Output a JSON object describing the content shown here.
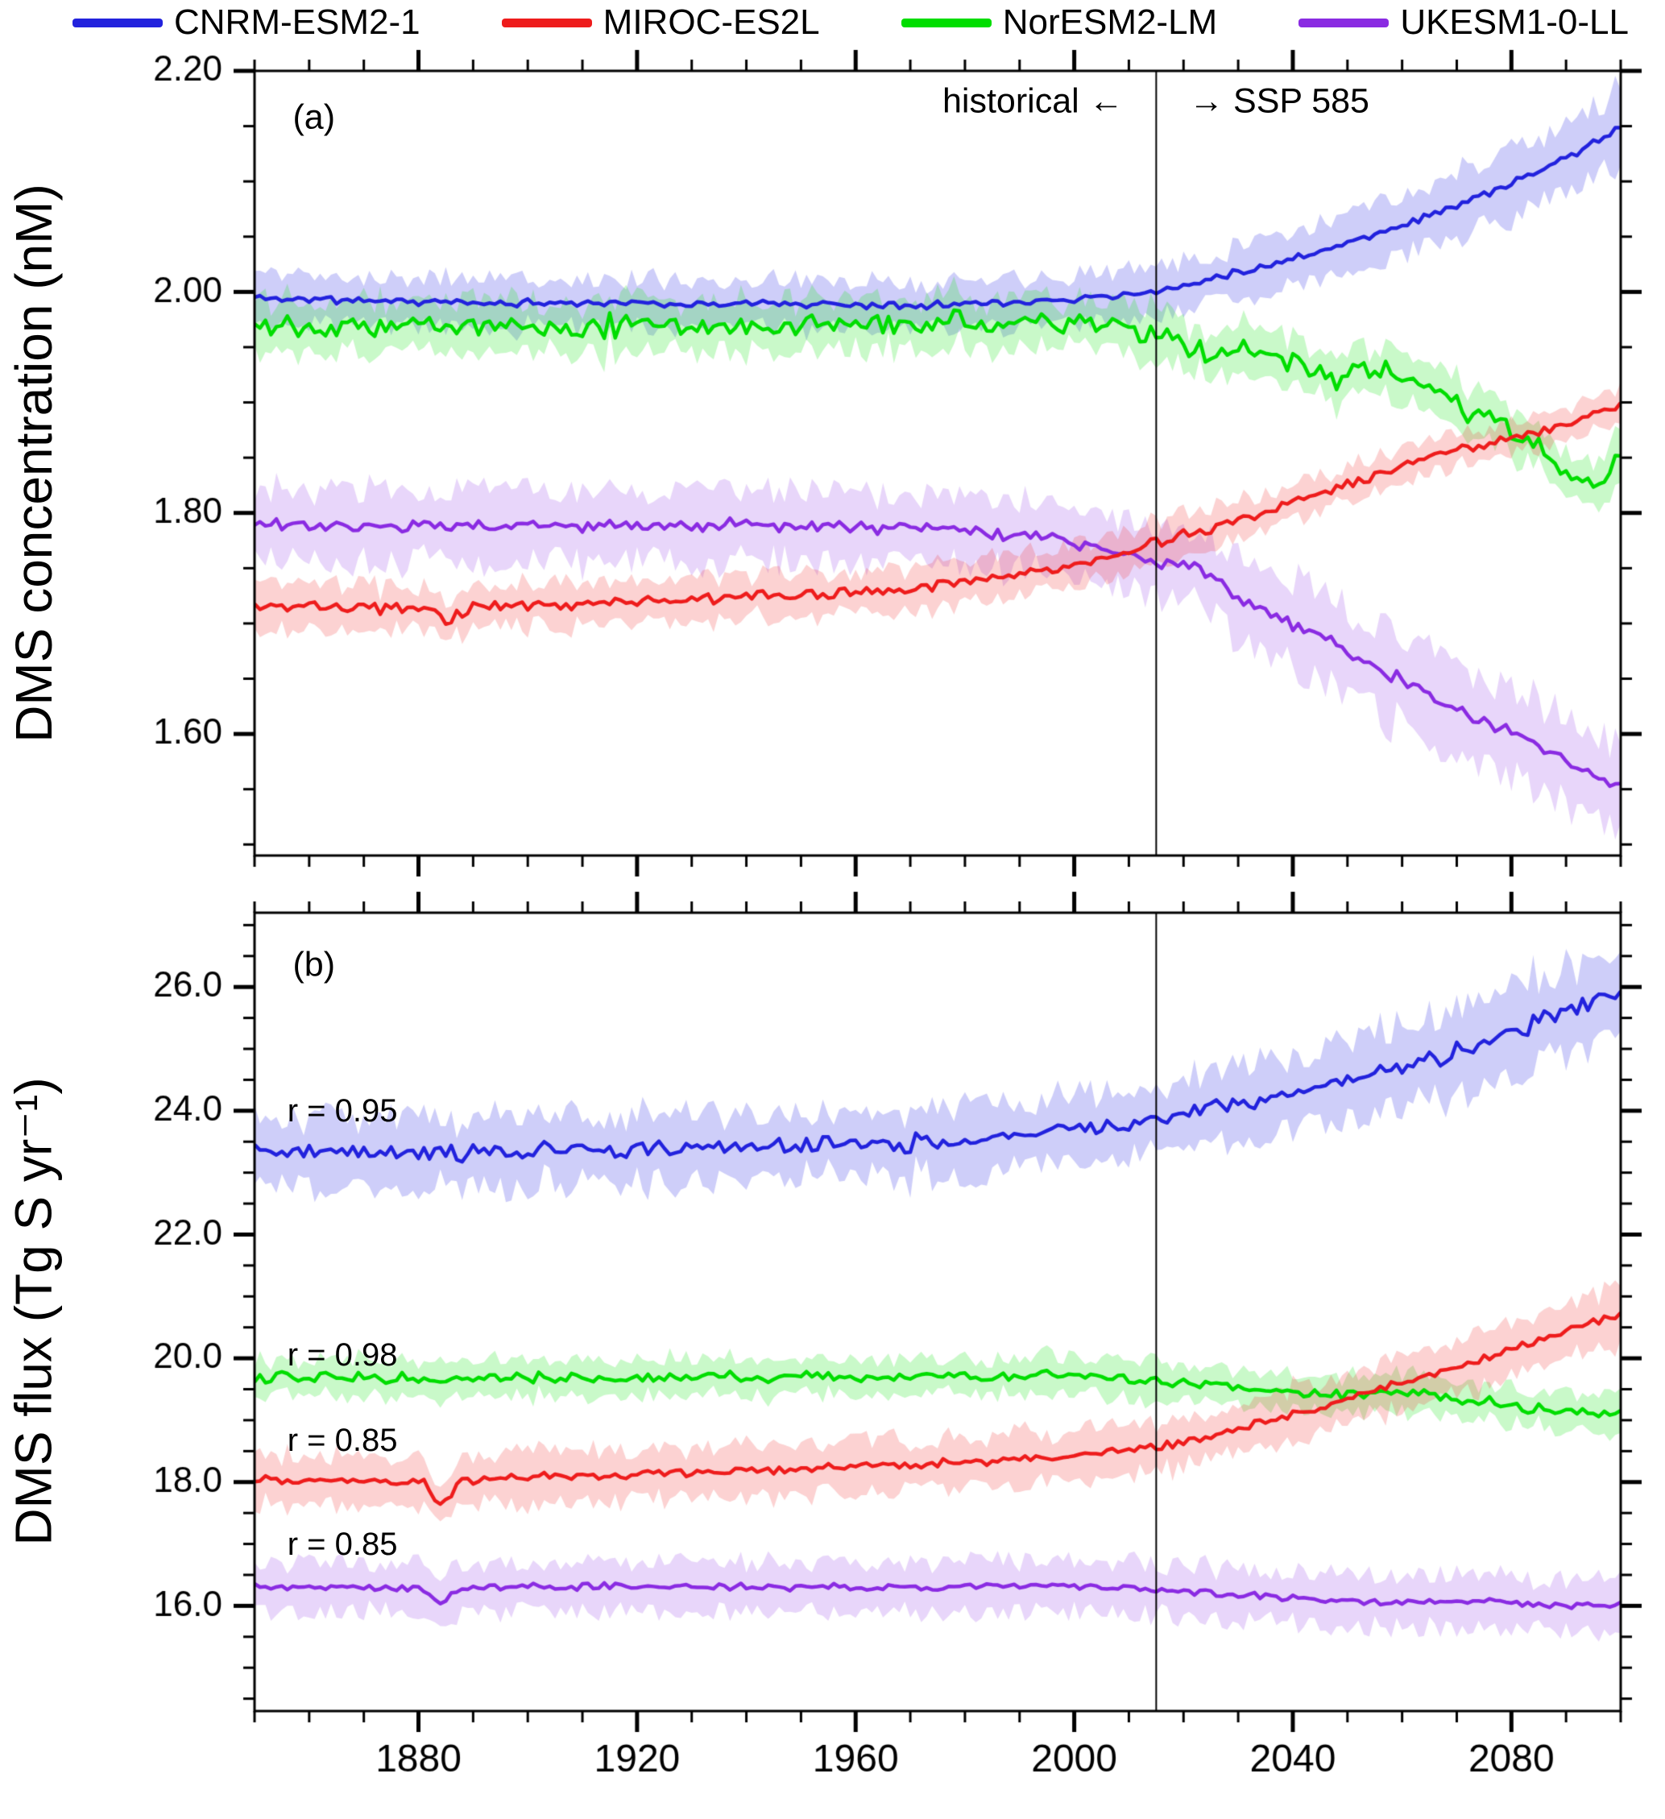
{
  "legend": {
    "items": [
      {
        "label": "CNRM-ESM2-1",
        "color": "#2222dd"
      },
      {
        "label": "MIROC-ES2L",
        "color": "#ee1c1c"
      },
      {
        "label": "NorESM2-LM",
        "color": "#00dd00"
      },
      {
        "label": "UKESM1-0-LL",
        "color": "#8a2be2"
      }
    ]
  },
  "chart_data": [
    {
      "type": "line",
      "panel": "a",
      "ylabel": "DMS concentration (nM)",
      "x_range": [
        1850,
        2100
      ],
      "y_range": [
        1.49,
        2.2
      ],
      "x_ticks_major": [
        1880,
        1920,
        1960,
        2000,
        2040,
        2080
      ],
      "x_minor_step": 10,
      "y_ticks_major": [
        {
          "value": 1.6,
          "label": "1.60"
        },
        {
          "value": 1.8,
          "label": "1.80"
        },
        {
          "value": 2.0,
          "label": "2.00"
        },
        {
          "value": 2.2,
          "label": "2.20"
        }
      ],
      "y_minor_step": 0.05,
      "show_x_labels": false,
      "divider_year": 2015,
      "scenario_left": "historical",
      "scenario_right": "SSP 585",
      "draw_order": [
        0,
        2,
        3,
        1
      ],
      "series": [
        {
          "name": "CNRM-ESM2-1",
          "color": "#2222dd",
          "band_color": "rgba(60,60,230,0.25)",
          "noise": 0.004,
          "seed": 11,
          "keypoints": [
            [
              1850,
              1.995
            ],
            [
              1870,
              1.992
            ],
            [
              1890,
              1.99
            ],
            [
              1910,
              1.99
            ],
            [
              1930,
              1.989
            ],
            [
              1950,
              1.989
            ],
            [
              1970,
              1.988
            ],
            [
              1985,
              1.99
            ],
            [
              2000,
              1.994
            ],
            [
              2015,
              2.0
            ],
            [
              2025,
              2.012
            ],
            [
              2040,
              2.03
            ],
            [
              2055,
              2.052
            ],
            [
              2070,
              2.078
            ],
            [
              2085,
              2.108
            ],
            [
              2100,
              2.148
            ]
          ],
          "band_halfwidth": [
            [
              1850,
              0.022
            ],
            [
              2015,
              0.022
            ],
            [
              2060,
              0.028
            ],
            [
              2100,
              0.034
            ]
          ]
        },
        {
          "name": "MIROC-ES2L",
          "color": "#ee1c1c",
          "band_color": "rgba(240,50,50,0.22)",
          "noise": 0.006,
          "seed": 33,
          "keypoints": [
            [
              1850,
              1.716
            ],
            [
              1870,
              1.714
            ],
            [
              1882,
              1.712
            ],
            [
              1885,
              1.7
            ],
            [
              1890,
              1.715
            ],
            [
              1910,
              1.718
            ],
            [
              1930,
              1.722
            ],
            [
              1950,
              1.726
            ],
            [
              1970,
              1.731
            ],
            [
              1985,
              1.74
            ],
            [
              2000,
              1.752
            ],
            [
              2010,
              1.765
            ],
            [
              2015,
              1.773
            ],
            [
              2030,
              1.793
            ],
            [
              2045,
              1.818
            ],
            [
              2060,
              1.843
            ],
            [
              2075,
              1.862
            ],
            [
              2090,
              1.88
            ],
            [
              2100,
              1.897
            ]
          ],
          "band_halfwidth": [
            [
              1850,
              0.02
            ],
            [
              2015,
              0.018
            ],
            [
              2100,
              0.014
            ]
          ]
        },
        {
          "name": "NorESM2-LM",
          "color": "#00dd00",
          "band_color": "rgba(40,230,40,0.25)",
          "noise": 0.013,
          "seed": 22,
          "keypoints": [
            [
              1850,
              1.973
            ],
            [
              1880,
              1.97
            ],
            [
              1900,
              1.968
            ],
            [
              1920,
              1.97
            ],
            [
              1940,
              1.968
            ],
            [
              1960,
              1.97
            ],
            [
              1980,
              1.972
            ],
            [
              2000,
              1.974
            ],
            [
              2015,
              1.962
            ],
            [
              2025,
              1.94
            ],
            [
              2033,
              1.95
            ],
            [
              2040,
              1.935
            ],
            [
              2048,
              1.92
            ],
            [
              2055,
              1.932
            ],
            [
              2062,
              1.918
            ],
            [
              2070,
              1.898
            ],
            [
              2078,
              1.882
            ],
            [
              2085,
              1.862
            ],
            [
              2092,
              1.832
            ],
            [
              2096,
              1.822
            ],
            [
              2100,
              1.858
            ]
          ],
          "band_halfwidth": [
            [
              1850,
              0.024
            ],
            [
              2015,
              0.022
            ],
            [
              2100,
              0.02
            ]
          ]
        },
        {
          "name": "UKESM1-0-LL",
          "color": "#8a2be2",
          "band_color": "rgba(150,70,230,0.22)",
          "noise": 0.007,
          "seed": 44,
          "keypoints": [
            [
              1850,
              1.789
            ],
            [
              1880,
              1.788
            ],
            [
              1900,
              1.789
            ],
            [
              1920,
              1.788
            ],
            [
              1940,
              1.789
            ],
            [
              1960,
              1.787
            ],
            [
              1980,
              1.785
            ],
            [
              1995,
              1.778
            ],
            [
              2005,
              1.77
            ],
            [
              2015,
              1.756
            ],
            [
              2022,
              1.752
            ],
            [
              2030,
              1.724
            ],
            [
              2040,
              1.7
            ],
            [
              2050,
              1.676
            ],
            [
              2060,
              1.648
            ],
            [
              2070,
              1.622
            ],
            [
              2080,
              1.6
            ],
            [
              2090,
              1.576
            ],
            [
              2100,
              1.552
            ]
          ],
          "band_halfwidth": [
            [
              1850,
              0.033
            ],
            [
              2015,
              0.03
            ],
            [
              2040,
              0.04
            ],
            [
              2100,
              0.042
            ]
          ]
        }
      ],
      "annotations": [
        {
          "text": "(a)",
          "year": 1857,
          "value": 2.158,
          "align": "left"
        },
        {
          "text": "historical ←",
          "year": 2009,
          "value": 2.172,
          "align": "right"
        },
        {
          "text": "→ SSP 585",
          "year": 2021,
          "value": 2.172,
          "align": "left"
        }
      ]
    },
    {
      "type": "line",
      "panel": "b",
      "ylabel": "DMS flux (Tg S yr⁻¹)",
      "x_range": [
        1850,
        2100
      ],
      "y_range": [
        14.3,
        27.2
      ],
      "x_ticks_major": [
        1880,
        1920,
        1960,
        2000,
        2040,
        2080
      ],
      "x_minor_step": 10,
      "y_ticks_major": [
        {
          "value": 16.0,
          "label": "16.0"
        },
        {
          "value": 18.0,
          "label": "18.0"
        },
        {
          "value": 20.0,
          "label": "20.0"
        },
        {
          "value": 22.0,
          "label": "22.0"
        },
        {
          "value": 24.0,
          "label": "24.0"
        },
        {
          "value": 26.0,
          "label": "26.0"
        }
      ],
      "y_minor_step": 0.5,
      "show_x_labels": true,
      "divider_year": 2015,
      "draw_order": [
        0,
        2,
        3,
        1
      ],
      "series": [
        {
          "name": "CNRM-ESM2-1",
          "color": "#2222dd",
          "band_color": "rgba(60,60,230,0.25)",
          "noise": 0.17,
          "seed": 55,
          "keypoints": [
            [
              1850,
              23.4
            ],
            [
              1870,
              23.35
            ],
            [
              1890,
              23.32
            ],
            [
              1910,
              23.38
            ],
            [
              1930,
              23.4
            ],
            [
              1950,
              23.42
            ],
            [
              1970,
              23.48
            ],
            [
              1985,
              23.55
            ],
            [
              2000,
              23.7
            ],
            [
              2015,
              23.85
            ],
            [
              2030,
              24.1
            ],
            [
              2045,
              24.4
            ],
            [
              2060,
              24.7
            ],
            [
              2075,
              25.1
            ],
            [
              2090,
              25.6
            ],
            [
              2100,
              25.95
            ]
          ],
          "band_halfwidth": [
            [
              1850,
              0.55
            ],
            [
              2015,
              0.55
            ],
            [
              2100,
              0.75
            ]
          ]
        },
        {
          "name": "MIROC-ES2L",
          "color": "#ee1c1c",
          "band_color": "rgba(240,50,50,0.22)",
          "noise": 0.08,
          "seed": 77,
          "keypoints": [
            [
              1850,
              18.05
            ],
            [
              1870,
              18.02
            ],
            [
              1881,
              18.0
            ],
            [
              1884,
              17.62
            ],
            [
              1888,
              18.02
            ],
            [
              1900,
              18.08
            ],
            [
              1920,
              18.12
            ],
            [
              1940,
              18.18
            ],
            [
              1960,
              18.24
            ],
            [
              1980,
              18.32
            ],
            [
              2000,
              18.42
            ],
            [
              2015,
              18.56
            ],
            [
              2030,
              18.85
            ],
            [
              2045,
              19.2
            ],
            [
              2060,
              19.6
            ],
            [
              2075,
              20.0
            ],
            [
              2090,
              20.45
            ],
            [
              2100,
              20.72
            ]
          ],
          "band_halfwidth": [
            [
              1850,
              0.42
            ],
            [
              2015,
              0.4
            ],
            [
              2100,
              0.45
            ]
          ]
        },
        {
          "name": "NorESM2-LM",
          "color": "#00dd00",
          "band_color": "rgba(40,230,40,0.25)",
          "noise": 0.1,
          "seed": 66,
          "keypoints": [
            [
              1850,
              19.7
            ],
            [
              1900,
              19.68
            ],
            [
              1950,
              19.7
            ],
            [
              2000,
              19.72
            ],
            [
              2015,
              19.62
            ],
            [
              2030,
              19.5
            ],
            [
              2045,
              19.42
            ],
            [
              2060,
              19.45
            ],
            [
              2075,
              19.3
            ],
            [
              2090,
              19.12
            ],
            [
              2100,
              19.15
            ]
          ],
          "band_halfwidth": [
            [
              1850,
              0.3
            ],
            [
              2100,
              0.3
            ]
          ]
        },
        {
          "name": "UKESM1-0-LL",
          "color": "#8a2be2",
          "band_color": "rgba(150,70,230,0.22)",
          "noise": 0.07,
          "seed": 88,
          "keypoints": [
            [
              1850,
              16.32
            ],
            [
              1870,
              16.3
            ],
            [
              1881,
              16.28
            ],
            [
              1884,
              16.05
            ],
            [
              1888,
              16.28
            ],
            [
              1900,
              16.3
            ],
            [
              1930,
              16.32
            ],
            [
              1960,
              16.3
            ],
            [
              1990,
              16.32
            ],
            [
              2015,
              16.28
            ],
            [
              2030,
              16.18
            ],
            [
              2045,
              16.1
            ],
            [
              2060,
              16.05
            ],
            [
              2075,
              16.08
            ],
            [
              2090,
              16.0
            ],
            [
              2100,
              16.02
            ]
          ],
          "band_halfwidth": [
            [
              1850,
              0.38
            ],
            [
              2100,
              0.42
            ]
          ]
        }
      ],
      "annotations": [
        {
          "text": "(b)",
          "year": 1857,
          "value": 26.35,
          "align": "left"
        },
        {
          "text": "r = 0.95",
          "year": 1856,
          "value": 24.0,
          "align": "left"
        },
        {
          "text": "r = 0.98",
          "year": 1856,
          "value": 20.05,
          "align": "left"
        },
        {
          "text": "r = 0.85",
          "year": 1856,
          "value": 18.68,
          "align": "left"
        },
        {
          "text": "r = 0.85",
          "year": 1856,
          "value": 17.0,
          "align": "left"
        }
      ]
    }
  ]
}
